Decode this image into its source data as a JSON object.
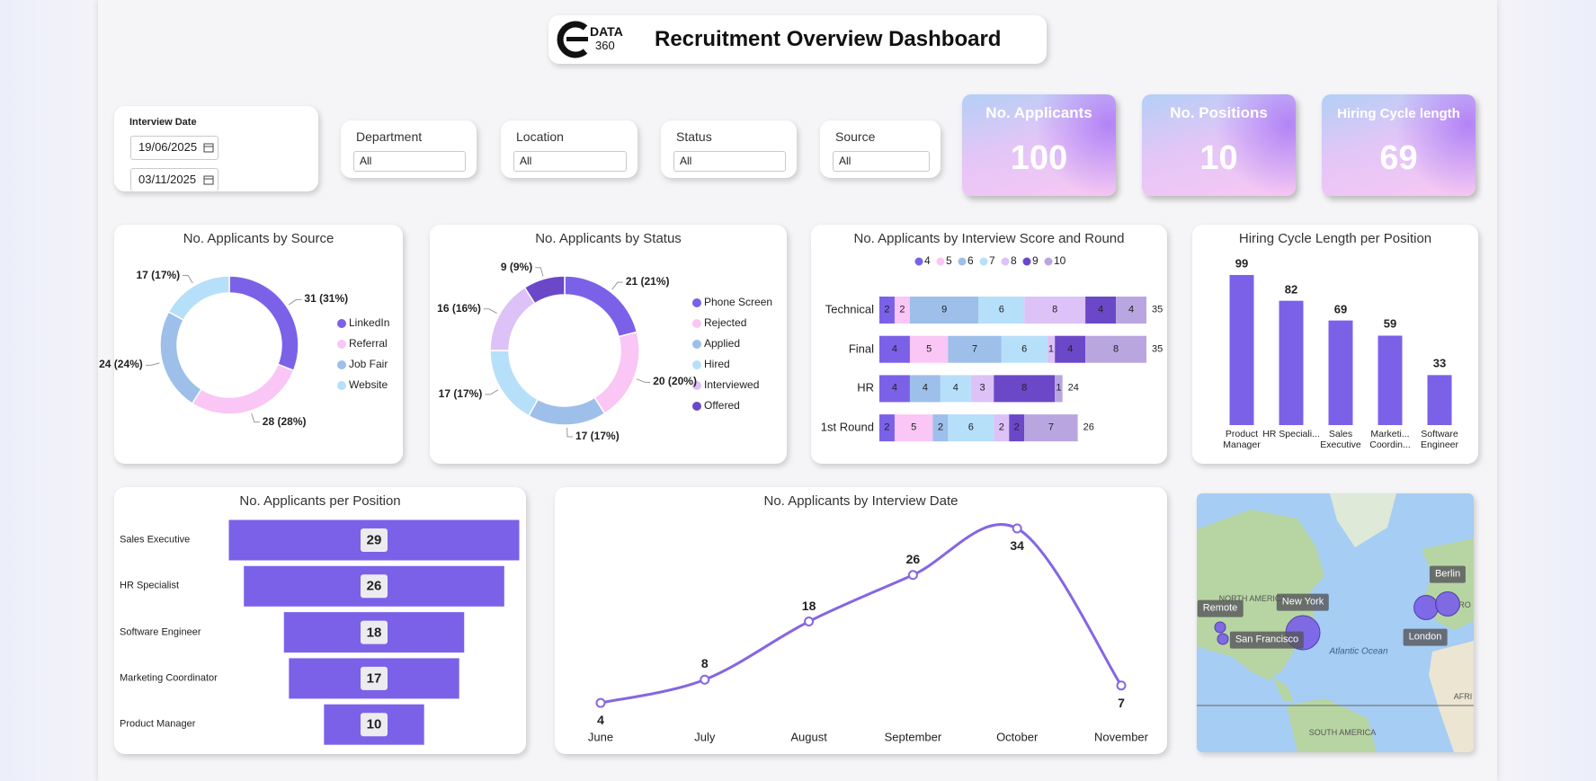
{
  "header": {
    "logo_text": "DATA",
    "logo_subtext": "360",
    "title": "Recruitment Overview Dashboard"
  },
  "filters": {
    "date": {
      "label": "Interview Date",
      "start": "19/06/2025",
      "end": "03/11/2025"
    },
    "dropdowns": [
      {
        "label": "Department",
        "value": "All"
      },
      {
        "label": "Location",
        "value": "All"
      },
      {
        "label": "Status",
        "value": "All"
      },
      {
        "label": "Source",
        "value": "All"
      }
    ]
  },
  "kpis": [
    {
      "label": "No. Applicants",
      "value": 100
    },
    {
      "label": "No. Positions",
      "value": 10
    },
    {
      "label": "Hiring Cycle length",
      "value": 69
    }
  ],
  "chart_data": [
    {
      "type": "donut",
      "title": "No. Applicants by Source",
      "categories": [
        "LinkedIn",
        "Referral",
        "Job Fair",
        "Website"
      ],
      "values": [
        31,
        28,
        24,
        17
      ],
      "value_labels": [
        "31 (31%)",
        "28 (28%)",
        "24 (24%)",
        "17 (17%)"
      ],
      "colors": [
        "#7b61e8",
        "#f9c6f5",
        "#9dbfea",
        "#b6dffa"
      ],
      "legend": "right"
    },
    {
      "type": "donut",
      "title": "No. Applicants by Status",
      "categories": [
        "Phone Screen",
        "Rejected",
        "Applied",
        "Hired",
        "Interviewed",
        "Offered"
      ],
      "values": [
        21,
        20,
        17,
        17,
        16,
        9
      ],
      "value_labels": [
        "21 (21%)",
        "20 (20%)",
        "17 (17%)",
        "17 (17%)",
        "16 (16%)",
        "9 (9%)"
      ],
      "colors": [
        "#7b61e8",
        "#f9c6f5",
        "#9dbfea",
        "#b6dffa",
        "#dcc2f6",
        "#6a48c8"
      ],
      "legend": "right"
    },
    {
      "type": "stacked_bar",
      "orientation": "horizontal",
      "title": "No. Applicants by Interview Score and Round",
      "categories": [
        "Technical",
        "Final",
        "HR",
        "1st Round"
      ],
      "series": [
        {
          "name": "4",
          "color": "#7b61e8",
          "values": [
            2,
            4,
            4,
            2
          ]
        },
        {
          "name": "5",
          "color": "#f9c6f5",
          "values": [
            2,
            5,
            null,
            5
          ]
        },
        {
          "name": "6",
          "color": "#9dbfea",
          "values": [
            9,
            7,
            4,
            2
          ]
        },
        {
          "name": "7",
          "color": "#b6dffa",
          "values": [
            6,
            6,
            4,
            6
          ]
        },
        {
          "name": "8",
          "color": "#dcc2f6",
          "values": [
            8,
            1,
            3,
            2
          ]
        },
        {
          "name": "9",
          "color": "#6a48c8",
          "values": [
            4,
            4,
            8,
            2
          ]
        },
        {
          "name": "10",
          "color": "#b9a6e0",
          "values": [
            4,
            8,
            1,
            7
          ]
        }
      ],
      "totals": [
        35,
        35,
        24,
        26
      ],
      "legend": "top"
    },
    {
      "type": "bar",
      "title": "Hiring Cycle Length per Position",
      "categories": [
        "Product Manager",
        "HR Speciali...",
        "Sales Executive",
        "Marketi... Coordin...",
        "Software Engineer"
      ],
      "values": [
        99,
        82,
        69,
        59,
        33
      ],
      "color": "#7b61e8"
    },
    {
      "type": "funnel",
      "title": "No. Applicants per Position",
      "categories": [
        "Sales Executive",
        "HR Specialist",
        "Software Engineer",
        "Marketing Coordinator",
        "Product Manager"
      ],
      "values": [
        29,
        26,
        18,
        17,
        10
      ],
      "color": "#7b61e8"
    },
    {
      "type": "line",
      "title": "No. Applicants by Interview Date",
      "categories": [
        "June",
        "July",
        "August",
        "September",
        "October",
        "November"
      ],
      "values": [
        4,
        8,
        18,
        26,
        34,
        7
      ],
      "color": "#8566e2",
      "smooth": true
    },
    {
      "type": "map",
      "locations": [
        "Remote",
        "San Francisco",
        "New York",
        "London",
        "Berlin"
      ],
      "values": [
        3,
        3,
        30,
        15,
        15
      ],
      "color": "#7b61e8",
      "place_labels": [
        "NORTH AMERICA",
        "Atlantic Ocean",
        "SOUTH AMERICA",
        "AFRI",
        "RO"
      ]
    }
  ]
}
